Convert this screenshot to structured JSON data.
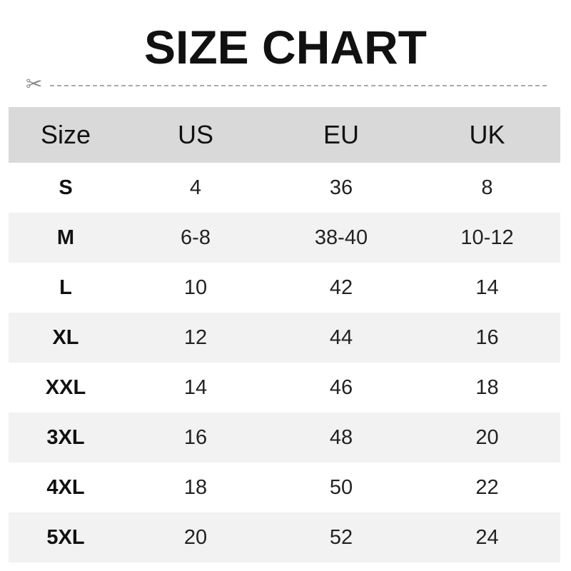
{
  "title": "SIZE CHART",
  "icons": {
    "cut_line": "scissors-icon"
  },
  "colors": {
    "header_bg": "#d9d9d9",
    "alt_row_bg": "#f2f2f2"
  },
  "headers": [
    "Size",
    "US",
    "EU",
    "UK"
  ],
  "rows": [
    [
      "S",
      "4",
      "36",
      "8"
    ],
    [
      "M",
      "6-8",
      "38-40",
      "10-12"
    ],
    [
      "L",
      "10",
      "42",
      "14"
    ],
    [
      "XL",
      "12",
      "44",
      "16"
    ],
    [
      "XXL",
      "14",
      "46",
      "18"
    ],
    [
      "3XL",
      "16",
      "48",
      "20"
    ],
    [
      "4XL",
      "18",
      "50",
      "22"
    ],
    [
      "5XL",
      "20",
      "52",
      "24"
    ]
  ]
}
